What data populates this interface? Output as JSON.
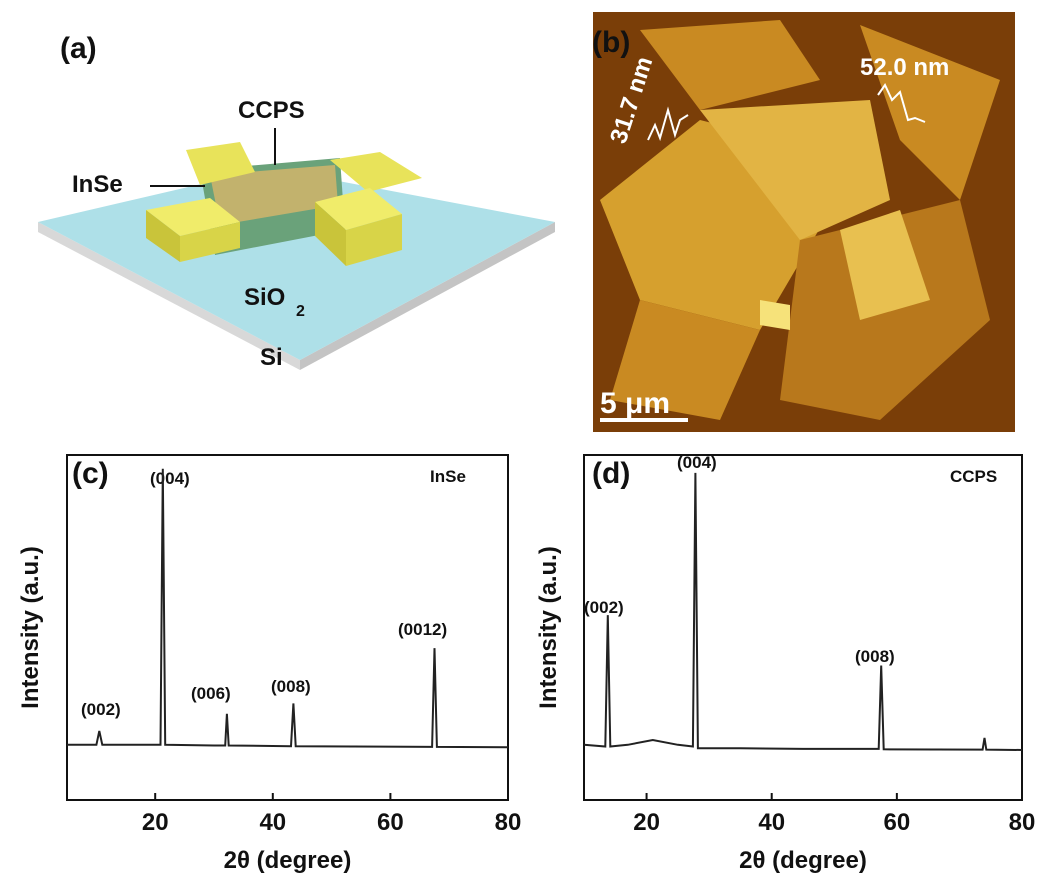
{
  "panel_a": {
    "label": "(a)",
    "ccps": "CCPS",
    "inse": "InSe",
    "sio": "SiO",
    "sio_sub": "2",
    "si": "Si"
  },
  "panel_b": {
    "label": "(b)",
    "height_1": "31.7 nm",
    "height_2": "52.0 nm",
    "scale_bar": "5 μm"
  },
  "chart_data": [
    {
      "type": "line",
      "label": "(c)",
      "name": "InSe",
      "xlabel": "2θ (degree)",
      "ylabel": "Intensity (a.u.)",
      "color": "#222222",
      "x": [
        5,
        10,
        10.5,
        11,
        20.9,
        21.3,
        21.7,
        30,
        31.9,
        32.2,
        32.5,
        43.1,
        43.5,
        43.9,
        67.1,
        67.5,
        67.9,
        80
      ],
      "values": [
        16,
        16,
        20,
        16,
        16,
        96,
        16,
        15.8,
        15.8,
        25,
        15.8,
        15.6,
        28,
        15.6,
        15.4,
        44,
        15.4,
        15.3
      ],
      "xlim": [
        5,
        80
      ],
      "xticks": [
        20,
        40,
        60,
        80
      ],
      "ylim": [
        0,
        100
      ],
      "annotations": [
        "(002)",
        "(004)",
        "(006)",
        "(008)",
        "(0012)"
      ]
    },
    {
      "type": "line",
      "label": "(d)",
      "name": "CCPS",
      "xlabel": "2θ (degree)",
      "ylabel": "Intensity (a.u.)",
      "color": "#222222",
      "x": [
        10,
        13.4,
        13.8,
        14.2,
        17,
        21,
        25,
        27.4,
        27.8,
        28.2,
        35,
        45,
        57.1,
        57.5,
        57.9,
        73.7,
        74,
        74.3,
        80
      ],
      "values": [
        16,
        15.5,
        53.6,
        15.5,
        16,
        17.4,
        16,
        15.5,
        94.8,
        15,
        15,
        14.8,
        14.8,
        39,
        14.7,
        14.6,
        18,
        14.6,
        14.5
      ],
      "xlim": [
        10,
        80
      ],
      "xticks": [
        20,
        40,
        60,
        80
      ],
      "ylim": [
        0,
        100
      ],
      "annotations": [
        "(002)",
        "(004)",
        "(008)"
      ]
    }
  ]
}
